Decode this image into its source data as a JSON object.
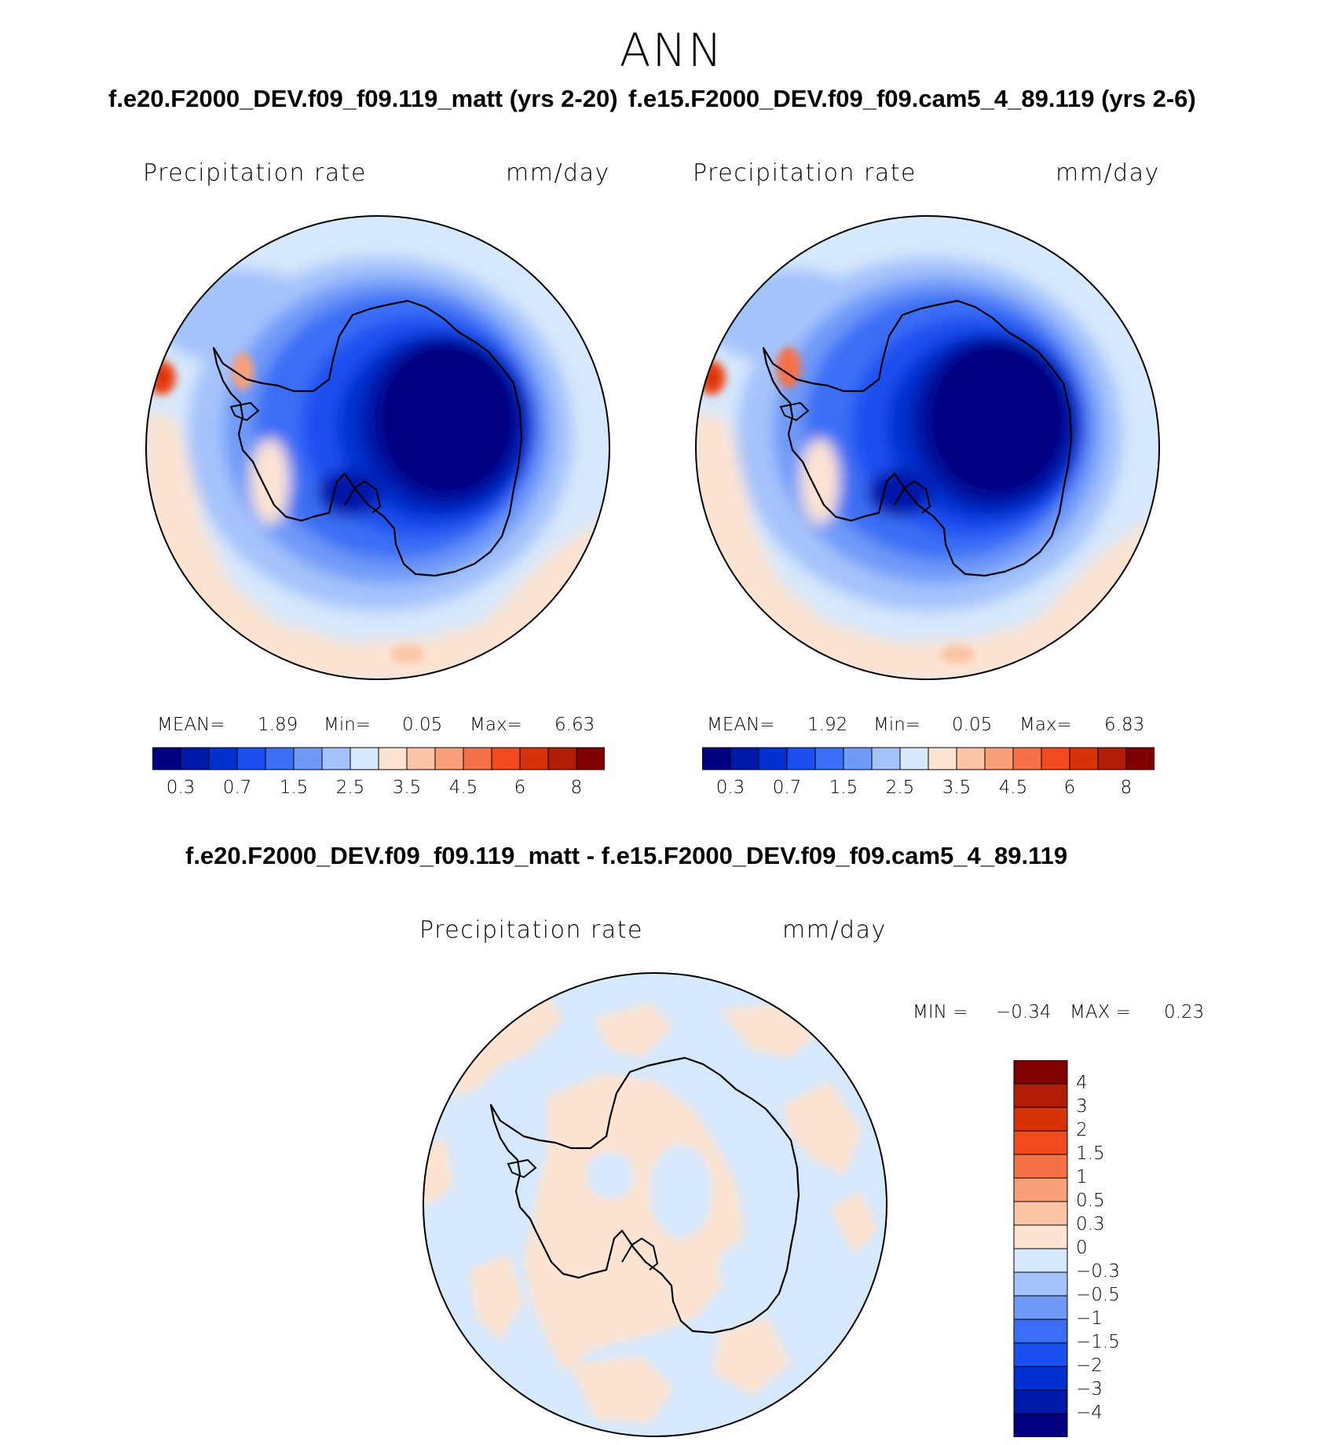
{
  "title": "ANN",
  "panels": [
    {
      "case_title": "f.e20.F2000_DEV.f09_f09.119_matt (yrs 2-20)",
      "variable": "Precipitation rate",
      "units": "mm/day",
      "stats": {
        "mean_label": "MEAN=",
        "mean": "1.89",
        "min_label": "Min=",
        "min": "0.05",
        "max_label": "Max=",
        "max": "6.63"
      }
    },
    {
      "case_title": "f.e15.F2000_DEV.f09_f09.cam5_4_89.119 (yrs 2-6)",
      "variable": "Precipitation rate",
      "units": "mm/day",
      "stats": {
        "mean_label": "MEAN=",
        "mean": "1.92",
        "min_label": "Min=",
        "min": "0.05",
        "max_label": "Max=",
        "max": "6.83"
      }
    },
    {
      "case_title": "f.e20.F2000_DEV.f09_f09.119_matt - f.e15.F2000_DEV.f09_f09.cam5_4_89.119",
      "variable": "Precipitation rate",
      "units": "mm/day",
      "stats": {
        "min_label": "MIN =",
        "min": "−0.34",
        "max_label": "MAX =",
        "max": "0.23"
      }
    }
  ],
  "colorbars": {
    "abs": {
      "colors": [
        "#000080",
        "#0019a8",
        "#0030d0",
        "#1c4ff0",
        "#3a6ef5",
        "#6f9af8",
        "#a4c3fb",
        "#d6e8fc",
        "#fde4d2",
        "#fcc4a6",
        "#f9a07a",
        "#f57248",
        "#f04a1e",
        "#d83208",
        "#b01c04",
        "#800000"
      ],
      "tick_labels": [
        "0.3",
        "0.7",
        "1.5",
        "2.5",
        "3.5",
        "4.5",
        "6",
        "8"
      ]
    },
    "diff": {
      "colors": [
        "#800000",
        "#b01c04",
        "#d83208",
        "#f04a1e",
        "#f57248",
        "#f9a07a",
        "#fcc4a6",
        "#fde4d2",
        "#d6e8fc",
        "#a4c3fb",
        "#6f9af8",
        "#3a6ef5",
        "#1c4ff0",
        "#0030d0",
        "#0019a8",
        "#000080"
      ],
      "tick_labels": [
        "4",
        "3",
        "2",
        "1.5",
        "1",
        "0.5",
        "0.3",
        "0",
        "−0.3",
        "−0.5",
        "−1",
        "−1.5",
        "−2",
        "−3",
        "−4"
      ]
    }
  }
}
